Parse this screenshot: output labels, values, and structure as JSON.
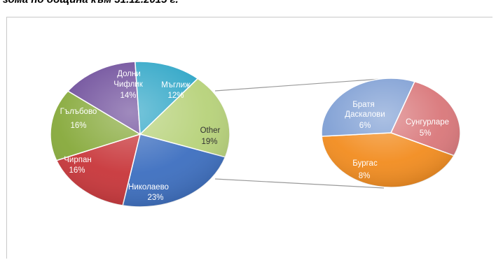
{
  "title": "зома по община към 31.12.2015 г.",
  "colors": {
    "nikolaevo": "#3d6fc0",
    "chirpan": "#c8363a",
    "galabovo": "#86a93a",
    "dolni_chiflik": "#6d4c9a",
    "maglizh": "#2fa6c7",
    "other": "#b7d27a",
    "bratya": "#7f9fd4",
    "sungurlare": "#d9777a",
    "burgas": "#f28c1f",
    "connector": "#9a9a9a"
  },
  "chart_data": {
    "type": "pie",
    "subtype": "pie-of-pie",
    "title": "зома по община към 31.12.2015 г.",
    "main_pie": [
      {
        "label": "Николаево",
        "value": 23,
        "display": "23%"
      },
      {
        "label": "Other",
        "value": 19,
        "display": "19%"
      },
      {
        "label": "Мъглиж",
        "value": 12,
        "display": "12%"
      },
      {
        "label": "Долни Чифлик",
        "lines": [
          "Долни",
          "Чифлик"
        ],
        "value": 14,
        "display": "14%"
      },
      {
        "label": "Гълъбово",
        "value": 16,
        "display": "16%"
      },
      {
        "label": "Чирпан",
        "value": 16,
        "display": "16%"
      }
    ],
    "secondary_pie": [
      {
        "label": "Сунгурларе",
        "value": 5,
        "display": "5%"
      },
      {
        "label": "Бургас",
        "value": 8,
        "display": "8%"
      },
      {
        "label": "Братя Даскалови",
        "lines": [
          "Братя",
          "Даскалови"
        ],
        "value": 6,
        "display": "6%"
      }
    ]
  }
}
